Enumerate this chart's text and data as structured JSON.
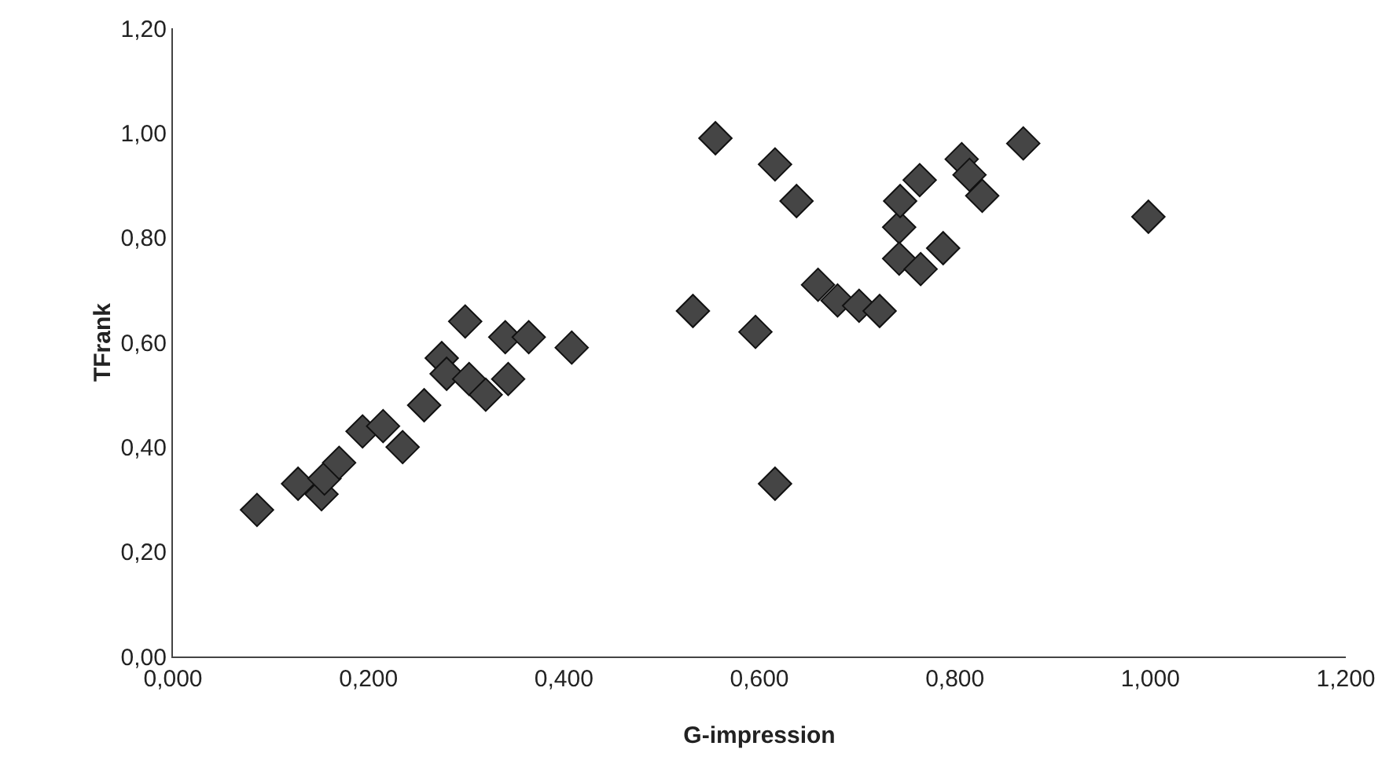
{
  "chart_data": {
    "type": "scatter",
    "xlabel": "G-impression",
    "ylabel": "TFrank",
    "marker": "diamond",
    "grid": false,
    "xlim": [
      0,
      1.2
    ],
    "ylim": [
      0,
      1.2
    ],
    "xticks": [
      {
        "value": 0,
        "label": "0,000"
      },
      {
        "value": 0.2,
        "label": "0,200"
      },
      {
        "value": 0.4,
        "label": "0,400"
      },
      {
        "value": 0.6,
        "label": "0,600"
      },
      {
        "value": 0.8,
        "label": "0,800"
      },
      {
        "value": 1.0,
        "label": "1,000"
      },
      {
        "value": 1.2,
        "label": "1,200"
      }
    ],
    "yticks": [
      {
        "value": 0,
        "label": "0,00"
      },
      {
        "value": 0.2,
        "label": "0,20"
      },
      {
        "value": 0.4,
        "label": "0,40"
      },
      {
        "value": 0.6,
        "label": "0,60"
      },
      {
        "value": 0.8,
        "label": "0,80"
      },
      {
        "value": 1.0,
        "label": "1,00"
      },
      {
        "value": 1.2,
        "label": "1,20"
      }
    ],
    "series": [
      {
        "color": "#454545",
        "x": [
          0.086,
          0.128,
          0.152,
          0.155,
          0.17,
          0.194,
          0.215,
          0.235,
          0.257,
          0.275,
          0.28,
          0.299,
          0.303,
          0.32,
          0.343,
          0.34,
          0.364,
          0.408,
          0.532,
          0.555,
          0.596,
          0.616,
          0.616,
          0.638,
          0.66,
          0.68,
          0.702,
          0.723,
          0.743,
          0.743,
          0.744,
          0.764,
          0.765,
          0.788,
          0.807,
          0.815,
          0.828,
          0.87,
          0.998
        ],
        "values": [
          0.28,
          0.33,
          0.31,
          0.34,
          0.37,
          0.43,
          0.44,
          0.4,
          0.48,
          0.57,
          0.54,
          0.64,
          0.53,
          0.5,
          0.53,
          0.61,
          0.61,
          0.59,
          0.66,
          0.99,
          0.62,
          0.94,
          0.33,
          0.87,
          0.71,
          0.68,
          0.67,
          0.66,
          0.82,
          0.76,
          0.87,
          0.91,
          0.74,
          0.78,
          0.95,
          0.92,
          0.88,
          0.98,
          0.84
        ]
      }
    ]
  }
}
